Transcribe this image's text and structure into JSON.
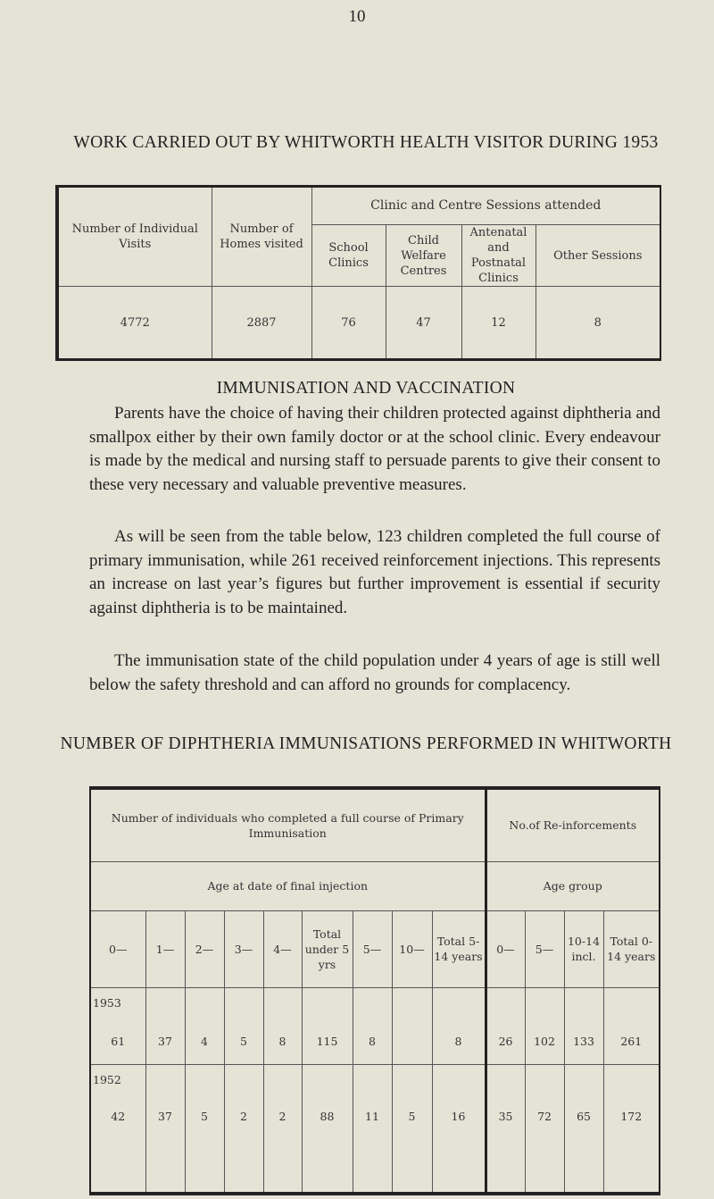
{
  "page_number": "10",
  "title1": "WORK CARRIED OUT BY WHITWORTH HEALTH VISITOR DURING 1953",
  "table1": {
    "col_individual": "Number of Individual Visits",
    "col_homes": "Number of Homes visited",
    "group": "Clinic and Centre Sessions attended",
    "sub": [
      "School Clinics",
      "Child Welfare Centres",
      "Antenatal and Postnatal Clinics",
      "Other Sessions"
    ],
    "values": [
      "4772",
      "2887",
      "76",
      "47",
      "12",
      "8"
    ]
  },
  "title2": "IMMUNISATION AND VACCINATION",
  "paragraphs": [
    "Parents have the choice of having their children protected against diphtheria and smallpox either by their own family doctor or at the school clinic. Every endeavour is made by the medical and nursing staff to persuade parents to give their consent to these very necessary and valuable preventive measures.",
    "As will be seen from the table below, 123 children completed the full course of primary immunisation, while 261 received reinforcement injections. This represents an increase on last year’s figures but further improvement is essential if security against diphtheria is to be maintained.",
    "The immunisation state of the child population under 4 years of age is still well below the safety threshold and can afford no grounds for complacency."
  ],
  "title3": "NUMBER OF DIPHTHERIA IMMUNISATIONS PERFORMED IN WHITWORTH",
  "table2": {
    "primary_header": "Number of individuals who completed a full course of Primary Immunisation",
    "reinf_header": "No.of Re-inforcements",
    "age_final": "Age at date of final injection",
    "age_group": "Age group",
    "cols": [
      "0—",
      "1—",
      "2—",
      "3—",
      "4—",
      "Total under 5 yrs",
      "5—",
      "10—",
      "Total 5-14 years",
      "0—",
      "5—",
      "10-14 incl.",
      "Total 0-14 years"
    ],
    "rows": [
      {
        "year": "1953",
        "values": [
          "61",
          "37",
          "4",
          "5",
          "8",
          "115",
          "8",
          "",
          "8",
          "26",
          "102",
          "133",
          "261"
        ]
      },
      {
        "year": "1952",
        "values": [
          "42",
          "37",
          "5",
          "2",
          "2",
          "88",
          "11",
          "5",
          "16",
          "35",
          "72",
          "65",
          "172"
        ]
      }
    ]
  }
}
